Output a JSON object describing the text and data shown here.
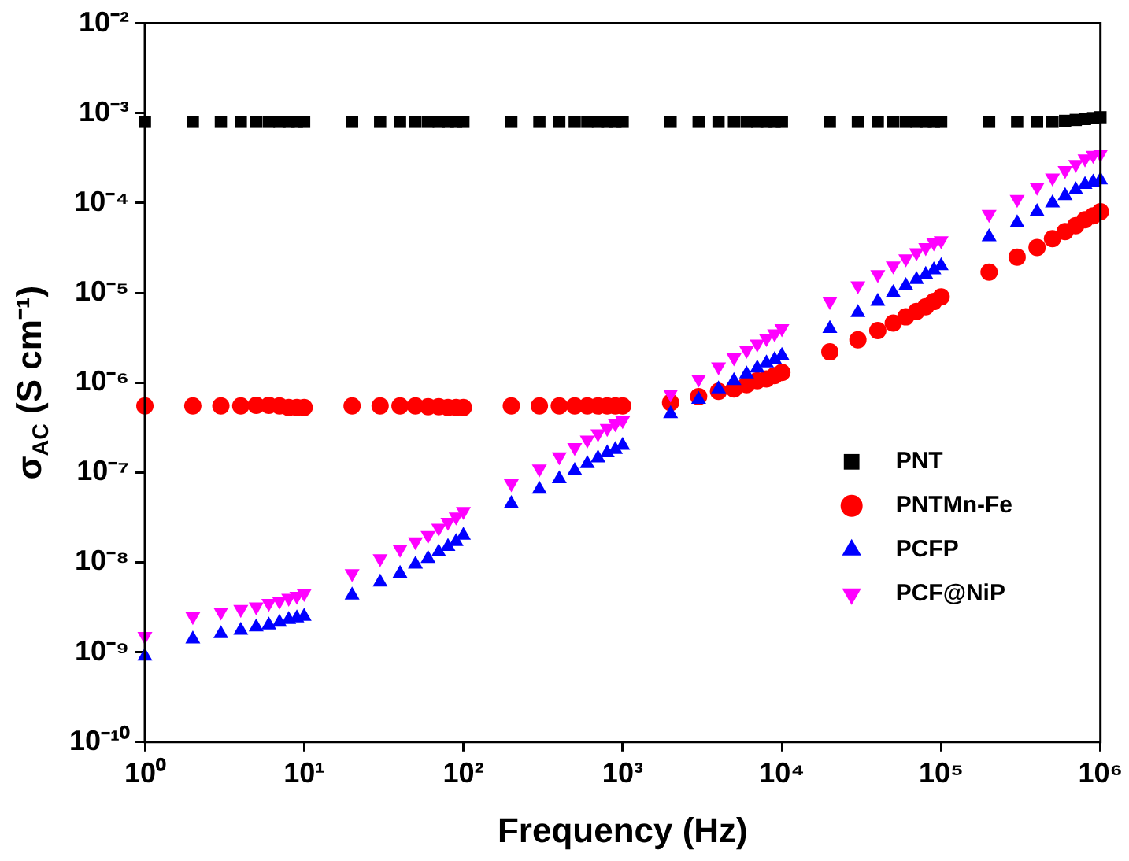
{
  "chart_data": {
    "type": "scatter",
    "xlabel": "Frequency (Hz)",
    "ylabel": "σ$_{AC}$ (S cm⁻¹)",
    "log": "xy",
    "legend": "bottom right",
    "grid": false,
    "x": [
      1,
      2,
      3,
      4,
      5,
      6,
      7,
      8,
      9,
      10,
      20,
      30,
      40,
      50,
      60,
      70,
      80,
      90,
      100,
      200,
      300,
      400,
      500,
      600,
      700,
      800,
      900,
      1000,
      2000,
      3000,
      4000,
      5000,
      6000,
      7000,
      8000,
      9000,
      10000,
      20000,
      30000,
      40000,
      50000,
      60000,
      70000,
      80000,
      90000,
      100000,
      200000,
      300000,
      400000,
      500000,
      600000,
      700000,
      800000,
      900000,
      1000000
    ],
    "series": [
      {
        "name": "PNT",
        "color": "#000000",
        "marker": "square",
        "values": [
          0.0008,
          0.0008,
          0.0008,
          0.0008,
          0.0008,
          0.0008,
          0.0008,
          0.0008,
          0.0008,
          0.0008,
          0.0008,
          0.0008,
          0.0008,
          0.0008,
          0.0008,
          0.0008,
          0.0008,
          0.0008,
          0.0008,
          0.0008,
          0.0008,
          0.0008,
          0.0008,
          0.0008,
          0.0008,
          0.0008,
          0.0008,
          0.0008,
          0.0008,
          0.0008,
          0.0008,
          0.0008,
          0.0008,
          0.0008,
          0.0008,
          0.0008,
          0.0008,
          0.0008,
          0.0008,
          0.0008,
          0.0008,
          0.0008,
          0.0008,
          0.0008,
          0.0008,
          0.0008,
          0.0008,
          0.0008,
          0.0008,
          0.0008,
          0.00082,
          0.00084,
          0.00086,
          0.00088,
          0.0009
        ]
      },
      {
        "name": "PNTMn-Fe",
        "color": "#ff0000",
        "marker": "circle",
        "values": [
          5.5e-07,
          5.5e-07,
          5.5e-07,
          5.5e-07,
          5.6e-07,
          5.6e-07,
          5.5e-07,
          5.3e-07,
          5.3e-07,
          5.3e-07,
          5.5e-07,
          5.5e-07,
          5.5e-07,
          5.5e-07,
          5.4e-07,
          5.4e-07,
          5.3e-07,
          5.3e-07,
          5.3e-07,
          5.5e-07,
          5.5e-07,
          5.5e-07,
          5.5e-07,
          5.5e-07,
          5.5e-07,
          5.5e-07,
          5.5e-07,
          5.5e-07,
          6e-07,
          7e-07,
          8e-07,
          8.5e-07,
          9.5e-07,
          1.05e-06,
          1.1e-06,
          1.2e-06,
          1.3e-06,
          2.2e-06,
          3e-06,
          3.8e-06,
          4.6e-06,
          5.4e-06,
          6.2e-06,
          7e-06,
          8e-06,
          9e-06,
          1.7e-05,
          2.5e-05,
          3.2e-05,
          4e-05,
          4.8e-05,
          5.6e-05,
          6.5e-05,
          7.2e-05,
          8e-05
        ]
      },
      {
        "name": "PCFP",
        "color": "#0000ff",
        "marker": "triangle",
        "values": [
          9e-10,
          1.4e-09,
          1.6e-09,
          1.75e-09,
          1.9e-09,
          2e-09,
          2.15e-09,
          2.3e-09,
          2.4e-09,
          2.5e-09,
          4.3e-09,
          6e-09,
          7.5e-09,
          9.5e-09,
          1.1e-08,
          1.3e-08,
          1.5e-08,
          1.7e-08,
          2e-08,
          4.5e-08,
          6.5e-08,
          8.5e-08,
          1.05e-07,
          1.25e-07,
          1.45e-07,
          1.65e-07,
          1.8e-07,
          2e-07,
          4.5e-07,
          6.5e-07,
          8.5e-07,
          1.05e-06,
          1.25e-06,
          1.45e-06,
          1.65e-06,
          1.8e-06,
          2e-06,
          4e-06,
          6e-06,
          8e-06,
          1e-05,
          1.2e-05,
          1.4e-05,
          1.6e-05,
          1.8e-05,
          2e-05,
          4.2e-05,
          6e-05,
          8e-05,
          0.0001,
          0.00012,
          0.00014,
          0.00016,
          0.00017,
          0.00018
        ]
      },
      {
        "name": "PCF@NiP",
        "color": "#ff00ff",
        "marker": "triangle-down",
        "values": [
          1.5e-09,
          2.5e-09,
          2.8e-09,
          3e-09,
          3.2e-09,
          3.5e-09,
          3.7e-09,
          4e-09,
          4.2e-09,
          4.5e-09,
          7.5e-09,
          1.1e-08,
          1.4e-08,
          1.7e-08,
          2e-08,
          2.4e-08,
          2.8e-08,
          3.2e-08,
          3.7e-08,
          7.5e-08,
          1.1e-07,
          1.5e-07,
          1.9e-07,
          2.3e-07,
          2.7e-07,
          3.1e-07,
          3.5e-07,
          3.8e-07,
          7.5e-07,
          1.1e-06,
          1.5e-06,
          1.9e-06,
          2.3e-06,
          2.7e-06,
          3.1e-06,
          3.5e-06,
          4e-06,
          8e-06,
          1.2e-05,
          1.6e-05,
          2e-05,
          2.4e-05,
          2.8e-05,
          3.2e-05,
          3.6e-05,
          3.8e-05,
          7.5e-05,
          0.00011,
          0.00015,
          0.00019,
          0.00023,
          0.00027,
          0.00031,
          0.00034,
          0.00035
        ]
      }
    ],
    "xlim": [
      1,
      1000000
    ],
    "xticks": [
      {
        "value": 1,
        "label": "10⁰"
      },
      {
        "value": 10,
        "label": "10¹"
      },
      {
        "value": 100,
        "label": "10²"
      },
      {
        "value": 1000,
        "label": "10³"
      },
      {
        "value": 10000,
        "label": "10⁴"
      },
      {
        "value": 100000,
        "label": "10⁵"
      },
      {
        "value": 1000000,
        "label": "10⁶"
      }
    ],
    "ylim": [
      1e-10,
      0.01
    ],
    "yticks": [
      {
        "value": 1e-10,
        "label": "10⁻¹⁰"
      },
      {
        "value": 1e-09,
        "label": "10⁻⁹"
      },
      {
        "value": 1e-08,
        "label": "10⁻⁸"
      },
      {
        "value": 1e-07,
        "label": "10⁻⁷"
      },
      {
        "value": 1e-06,
        "label": "10⁻⁶"
      },
      {
        "value": 1e-05,
        "label": "10⁻⁵"
      },
      {
        "value": 0.0001,
        "label": "10⁻⁴"
      },
      {
        "value": 0.001,
        "label": "10⁻³"
      },
      {
        "value": 0.01,
        "label": "10⁻²"
      }
    ]
  }
}
